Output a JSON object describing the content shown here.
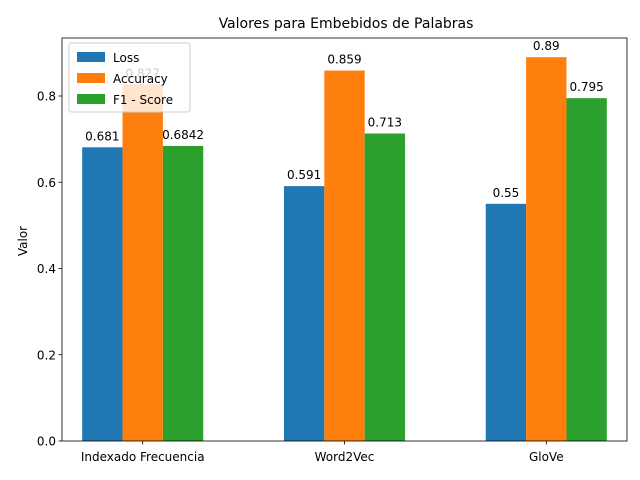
{
  "chart_data": {
    "type": "bar",
    "title": "Valores para Embebidos de Palabras",
    "xlabel": "",
    "ylabel": "Valor",
    "categories": [
      "Indexado Frecuencia",
      "Word2Vec",
      "GloVe"
    ],
    "series": [
      {
        "name": "Loss",
        "color": "#1f77b4",
        "values": [
          0.681,
          0.591,
          0.55
        ],
        "labels": [
          "0.681",
          "0.591",
          "0.55"
        ]
      },
      {
        "name": "Accuracy",
        "color": "#ff7f0e",
        "values": [
          0.827,
          0.859,
          0.89
        ],
        "labels": [
          "0.827",
          "0.859",
          "0.89"
        ]
      },
      {
        "name": "F1 - Score",
        "color": "#2ca02c",
        "values": [
          0.6842,
          0.713,
          0.795
        ],
        "labels": [
          "0.6842",
          "0.713",
          "0.795"
        ]
      }
    ],
    "ylim": [
      0,
      0.9345
    ],
    "yticks": [
      0.0,
      0.2,
      0.4,
      0.6,
      0.8
    ],
    "ytick_labels": [
      "0.0",
      "0.2",
      "0.4",
      "0.6",
      "0.8"
    ],
    "legend_position": "top-left",
    "grid": false
  }
}
